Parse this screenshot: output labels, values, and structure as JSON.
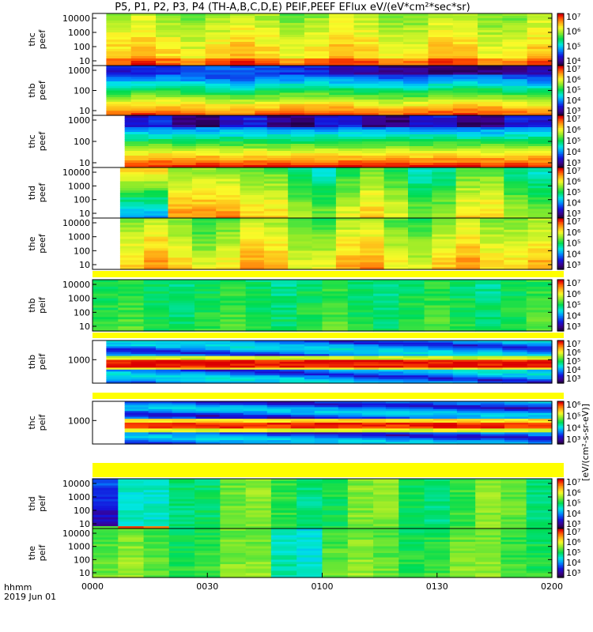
{
  "title": "P5, P1, P2, P3, P4 (TH-A,B,C,D,E) PEIF,PEEF EFlux eV/(eV*cm²*sec*sr)",
  "colorbar_label": "[eV/(cm²-s-sr-eV)]",
  "time_axis": {
    "label_line1": "hhmm",
    "label_line2": "2019 Jun 01",
    "ticks": [
      "0000",
      "0030",
      "0100",
      "0130",
      "0200"
    ]
  },
  "chart_data": {
    "type": "heatmap",
    "x_range": [
      "0000",
      "0200"
    ],
    "panels": [
      {
        "label1": "thc",
        "label2": "peef",
        "yticks": [
          "10",
          "100",
          "1000",
          "10000"
        ],
        "data_start": 0.03,
        "cbar_ticks": [
          "10⁴",
          "10⁵",
          "10⁶",
          "10⁷"
        ]
      },
      {
        "label1": "thb",
        "label2": "peef",
        "yticks": [
          "10",
          "100",
          "1000"
        ],
        "data_start": 0.03,
        "cbar_ticks": [
          "10³",
          "10⁴",
          "10⁵",
          "10⁶",
          "10⁷"
        ]
      },
      {
        "label1": "thc",
        "label2": "peef",
        "yticks": [
          "10",
          "100",
          "1000"
        ],
        "data_start": 0.07,
        "cbar_ticks": [
          "10³",
          "10⁴",
          "10⁵",
          "10⁶",
          "10⁷"
        ]
      },
      {
        "label1": "thd",
        "label2": "peef",
        "yticks": [
          "10",
          "100",
          "1000",
          "10000"
        ],
        "data_start": 0.06,
        "cbar_ticks": [
          "10³",
          "10⁴",
          "10⁵",
          "10⁶",
          "10⁷"
        ]
      },
      {
        "label1": "the",
        "label2": "peef",
        "yticks": [
          "10",
          "100",
          "1000",
          "10000"
        ],
        "data_start": 0.06,
        "cbar_ticks": [
          "10³",
          "10⁴",
          "10⁵",
          "10⁶",
          "10⁷"
        ]
      },
      {
        "label1": "thb",
        "label2": "peif",
        "yticks": [
          "10",
          "100",
          "1000",
          "10000"
        ],
        "data_start": 0.0,
        "cbar_ticks": [
          "10³",
          "10⁴",
          "10⁵",
          "10⁶",
          "10⁷"
        ]
      },
      {
        "label1": "thb",
        "label2": "peif",
        "yticks": [
          "1000"
        ],
        "data_start": 0.03,
        "cbar_ticks": [
          "10³",
          "10⁴",
          "10⁵",
          "10⁶",
          "10⁷"
        ]
      },
      {
        "label1": "thc",
        "label2": "peif",
        "yticks": [
          "1000"
        ],
        "data_start": 0.07,
        "cbar_ticks": [
          "10³",
          "10⁴",
          "10⁵",
          "10⁶"
        ]
      },
      {
        "label1": "thd",
        "label2": "peif",
        "yticks": [
          "10",
          "100",
          "1000",
          "10000"
        ],
        "data_start": 0.0,
        "cbar_ticks": [
          "10³",
          "10⁴",
          "10⁵",
          "10⁶",
          "10⁷"
        ]
      },
      {
        "label1": "the",
        "label2": "peif",
        "yticks": [
          "10",
          "100",
          "1000",
          "10000"
        ],
        "data_start": 0.0,
        "cbar_ticks": [
          "10³",
          "10⁴",
          "10⁵",
          "10⁶",
          "10⁷"
        ]
      }
    ]
  }
}
